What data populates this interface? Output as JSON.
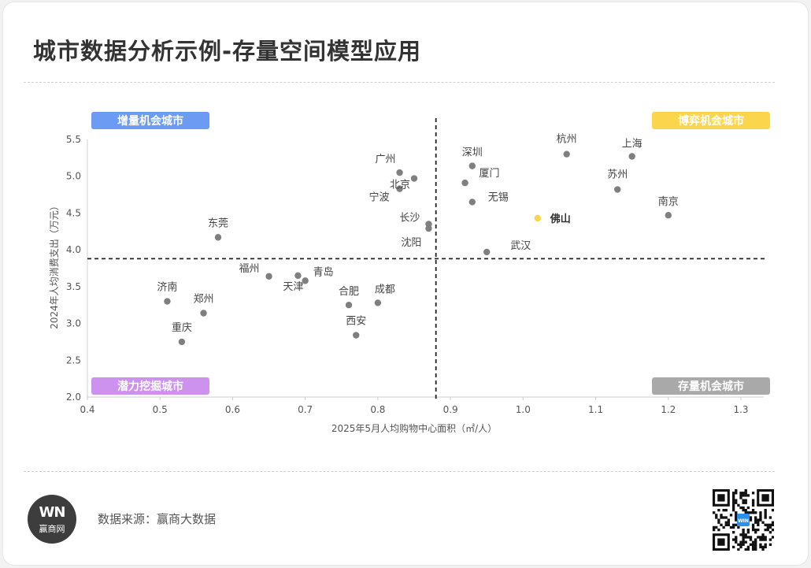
{
  "title": "城市数据分析示例-存量空间模型应用",
  "source": "数据来源：赢商大数据",
  "logo": {
    "mark": "WN",
    "name": "赢商网"
  },
  "qr_badge": "WIN",
  "quadrants": {
    "top_left": {
      "label": "增量机会城市",
      "color": "#6b9bf2"
    },
    "top_right": {
      "label": "博弈机会城市",
      "color": "#fbd64c"
    },
    "bottom_left": {
      "label": "潜力挖掘城市",
      "color": "#cc92ee"
    },
    "bottom_right": {
      "label": "存量机会城市",
      "color": "#a9a9a9"
    }
  },
  "chart_data": {
    "type": "scatter",
    "title": "",
    "xlabel": "2025年5月人均购物中心面积（㎡/人）",
    "ylabel": "2024年人均消费支出（万元）",
    "xlim": [
      0.4,
      1.3
    ],
    "ylim": [
      2.0,
      5.5
    ],
    "xticks": [
      "0.4",
      "0.5",
      "0.6",
      "0.7",
      "0.8",
      "0.9",
      "1.0",
      "1.1",
      "1.2",
      "1.3"
    ],
    "yticks": [
      "2.0",
      "2.5",
      "3.0",
      "3.5",
      "4.0",
      "4.5",
      "5.0",
      "5.5"
    ],
    "divider_x": 0.88,
    "divider_y": 3.88,
    "grid": false,
    "point_color": "#7f7f7f",
    "highlight_color": "#fbd64c",
    "points": [
      {
        "name": "东莞",
        "x": 0.58,
        "y": 4.17
      },
      {
        "name": "济南",
        "x": 0.51,
        "y": 3.3
      },
      {
        "name": "郑州",
        "x": 0.56,
        "y": 3.14
      },
      {
        "name": "重庆",
        "x": 0.53,
        "y": 2.75
      },
      {
        "name": "福州",
        "x": 0.65,
        "y": 3.64
      },
      {
        "name": "天津",
        "x": 0.69,
        "y": 3.65
      },
      {
        "name": "青岛",
        "x": 0.7,
        "y": 3.58
      },
      {
        "name": "合肥",
        "x": 0.76,
        "y": 3.25
      },
      {
        "name": "成都",
        "x": 0.8,
        "y": 3.28
      },
      {
        "name": "西安",
        "x": 0.77,
        "y": 2.84
      },
      {
        "name": "广州",
        "x": 0.83,
        "y": 5.05
      },
      {
        "name": "北京",
        "x": 0.85,
        "y": 4.97
      },
      {
        "name": "宁波",
        "x": 0.83,
        "y": 4.83
      },
      {
        "name": "长沙",
        "x": 0.87,
        "y": 4.35
      },
      {
        "name": "沈阳",
        "x": 0.87,
        "y": 4.29
      },
      {
        "name": "深圳",
        "x": 0.93,
        "y": 5.14
      },
      {
        "name": "厦门",
        "x": 0.92,
        "y": 4.91
      },
      {
        "name": "无锡",
        "x": 0.93,
        "y": 4.65
      },
      {
        "name": "武汉",
        "x": 0.95,
        "y": 3.97
      },
      {
        "name": "佛山",
        "x": 1.02,
        "y": 4.43,
        "highlight": true
      },
      {
        "name": "杭州",
        "x": 1.06,
        "y": 5.3
      },
      {
        "name": "上海",
        "x": 1.15,
        "y": 5.27
      },
      {
        "name": "苏州",
        "x": 1.13,
        "y": 4.82
      },
      {
        "name": "南京",
        "x": 1.2,
        "y": 4.47
      }
    ]
  }
}
